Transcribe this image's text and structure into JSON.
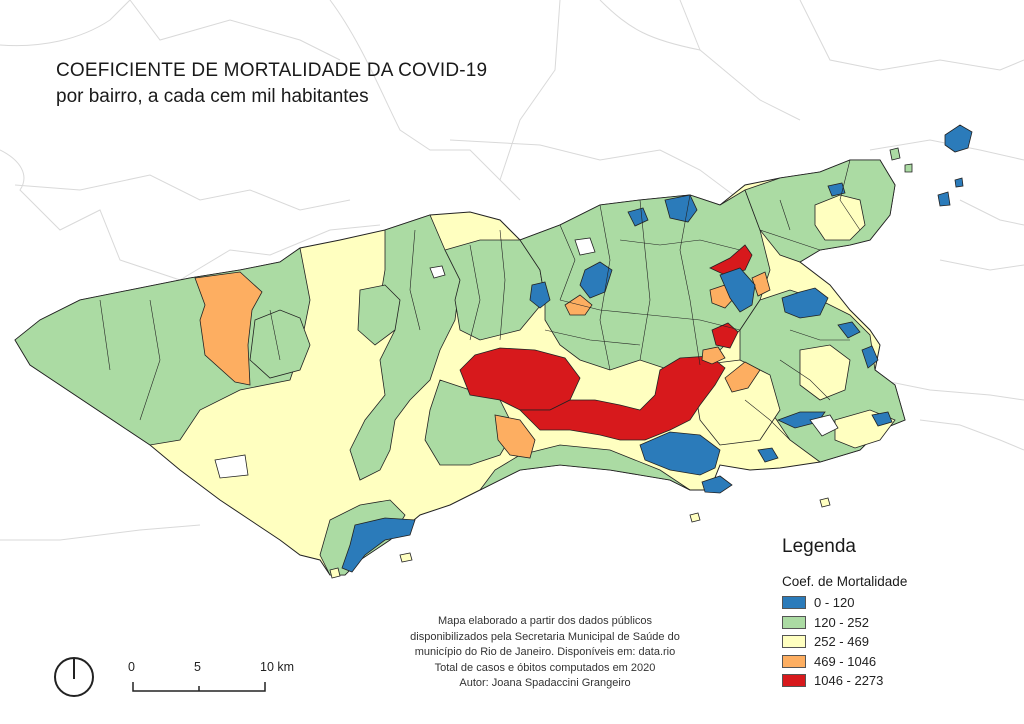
{
  "title": "COEFICIENTE DE MORTALIDADE DA COVID-19",
  "subtitle": "por bairro, a cada cem mil habitantes",
  "legend": {
    "title": "Legenda",
    "subtitle": "Coef. de Mortalidade",
    "classes": [
      {
        "label": "0 - 120",
        "color": "#2b7bba"
      },
      {
        "label": "120 - 252",
        "color": "#abdba3"
      },
      {
        "label": "252 - 469",
        "color": "#ffffc0"
      },
      {
        "label": "469 - 1046",
        "color": "#fdae61"
      },
      {
        "label": "1046 - 2273",
        "color": "#d7191c"
      }
    ]
  },
  "credits": {
    "line1": "Mapa elaborado a partir dos dados públicos",
    "line2": "disponibilizados pela Secretaria Municipal de Saúde do",
    "line3": "município do Rio de Janeiro. Disponíveis em: data.rio",
    "line4": "Total de casos e óbitos computados em 2020",
    "line5": "Autor: Joana Spadaccini Grangeiro"
  },
  "scale": {
    "label_0": "0",
    "label_5": "5",
    "label_10": "10 km"
  },
  "north_arrow_icon": "north-arrow-icon"
}
